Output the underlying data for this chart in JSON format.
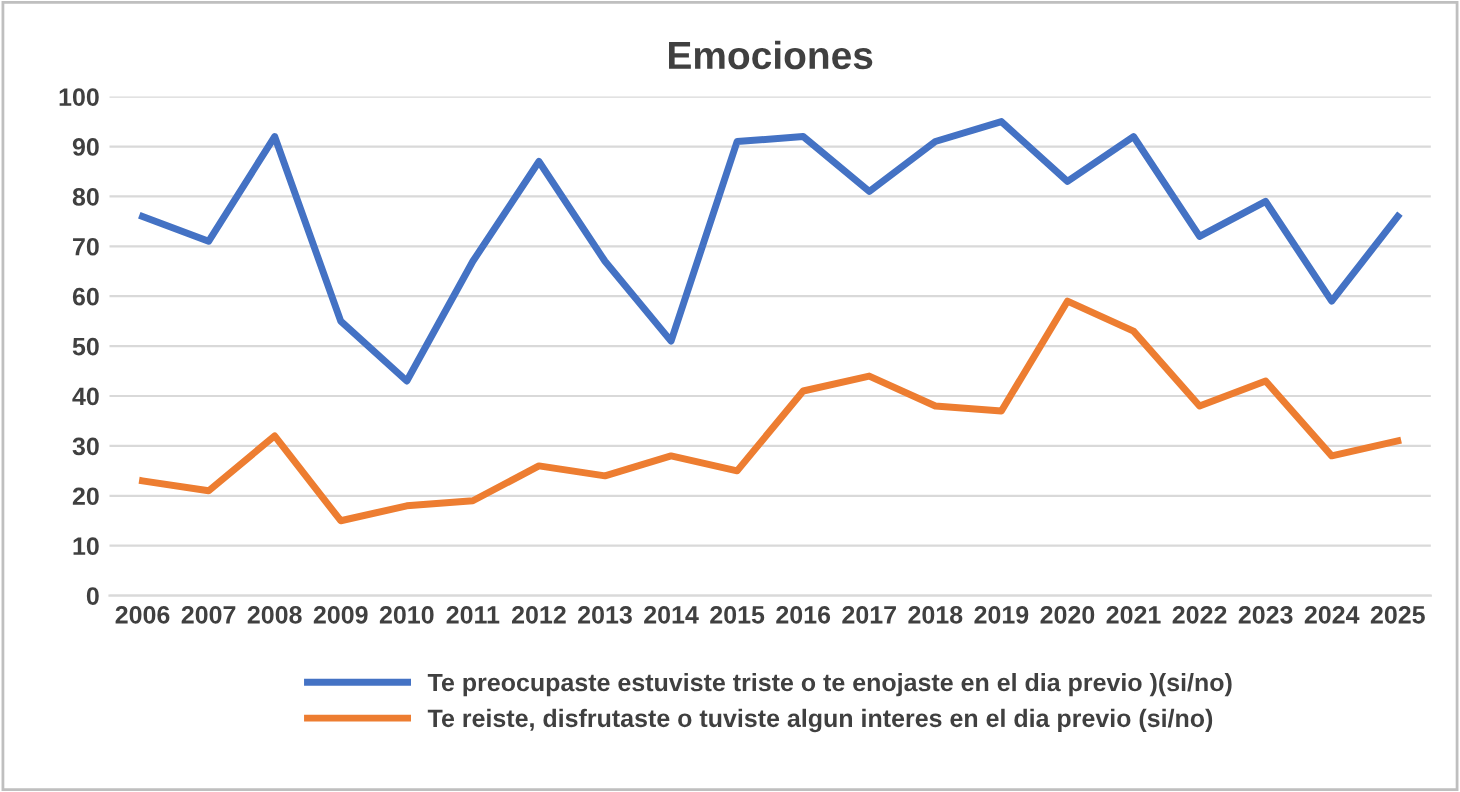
{
  "chart_data": {
    "type": "line",
    "title": "Emociones",
    "categories": [
      "2006",
      "2007",
      "2008",
      "2009",
      "2010",
      "2011",
      "2012",
      "2013",
      "2014",
      "2015",
      "2016",
      "2017",
      "2018",
      "2019",
      "2020",
      "2021",
      "2022",
      "2023",
      "2024",
      "2025"
    ],
    "series": [
      {
        "name": "Te preocupaste estuviste triste o te enojaste en el dia previo )(si/no)",
        "color": "#4472c4",
        "values": [
          76,
          71,
          92,
          55,
          43,
          67,
          87,
          67,
          51,
          91,
          92,
          81,
          91,
          95,
          83,
          92,
          72,
          79,
          59,
          76
        ]
      },
      {
        "name": "Te reiste, disfrutaste o tuviste algun interes en el dia previo (si/no)",
        "color": "#ed7d31",
        "values": [
          23,
          21,
          32,
          15,
          18,
          19,
          26,
          24,
          28,
          25,
          41,
          44,
          38,
          37,
          59,
          53,
          38,
          43,
          28,
          31
        ]
      }
    ],
    "ylim": [
      0,
      100
    ],
    "yticks": [
      0,
      10,
      20,
      30,
      40,
      50,
      60,
      70,
      80,
      90,
      100
    ],
    "grid": "y",
    "legend": "bottom",
    "marker": "none",
    "line_style": "solid"
  }
}
